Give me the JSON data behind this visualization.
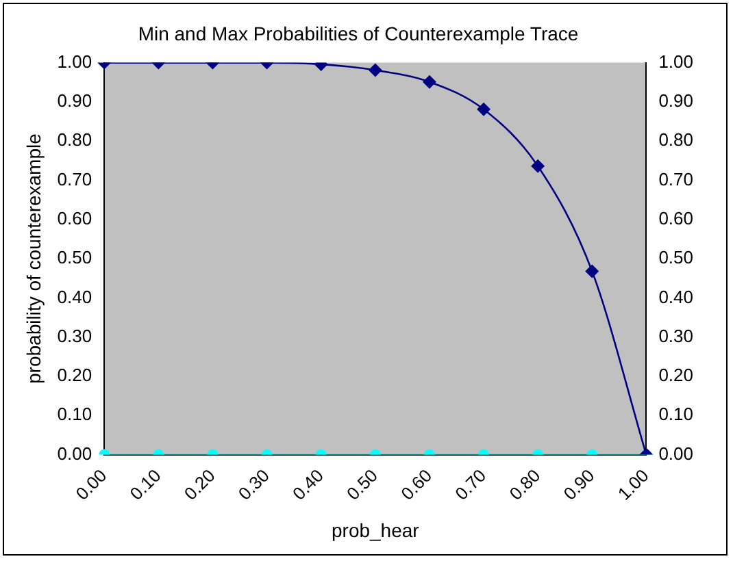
{
  "chart_data": {
    "type": "line",
    "title": "Min and Max Probabilities of Counterexample Trace",
    "xlabel": "prob_hear",
    "ylabel": "probability of counterexample",
    "categories": [
      "0.00",
      "0.10",
      "0.20",
      "0.30",
      "0.40",
      "0.50",
      "0.60",
      "0.70",
      "0.80",
      "0.90",
      "1.00"
    ],
    "series": [
      {
        "color": "#00ffff",
        "marker": "circle",
        "values": [
          0,
          0,
          0,
          0,
          0,
          0,
          0,
          0,
          0,
          0,
          0
        ]
      },
      {
        "color": "#000080",
        "marker": "diamond",
        "values": [
          1,
          1,
          1,
          1,
          0.996,
          0.981,
          0.951,
          0.881,
          0.736,
          0.468,
          0
        ]
      }
    ],
    "ylim": [
      0,
      1
    ],
    "yticks": [
      {
        "value": 0,
        "label": "0.00"
      },
      {
        "value": 0.1,
        "label": "0.10"
      },
      {
        "value": 0.2,
        "label": "0.20"
      },
      {
        "value": 0.3,
        "label": "0.30"
      },
      {
        "value": 0.4,
        "label": "0.40"
      },
      {
        "value": 0.5,
        "label": "0.50"
      },
      {
        "value": 0.6,
        "label": "0.60"
      },
      {
        "value": 0.7,
        "label": "0.70"
      },
      {
        "value": 0.8,
        "label": "0.80"
      },
      {
        "value": 0.9,
        "label": "0.90"
      },
      {
        "value": 1,
        "label": "1.00"
      }
    ],
    "y2lim": [
      0,
      1
    ],
    "y2ticks": [
      {
        "value": 0,
        "label": "0.00"
      },
      {
        "value": 0.1,
        "label": "0.10"
      },
      {
        "value": 0.2,
        "label": "0.20"
      },
      {
        "value": 0.3,
        "label": "0.30"
      },
      {
        "value": 0.4,
        "label": "0.40"
      },
      {
        "value": 0.5,
        "label": "0.50"
      },
      {
        "value": 0.6,
        "label": "0.60"
      },
      {
        "value": 0.7,
        "label": "0.70"
      },
      {
        "value": 0.8,
        "label": "0.80"
      },
      {
        "value": 0.9,
        "label": "0.90"
      },
      {
        "value": 1,
        "label": "1.00"
      }
    ],
    "grid": false,
    "legend": false,
    "line_style": "solid"
  }
}
